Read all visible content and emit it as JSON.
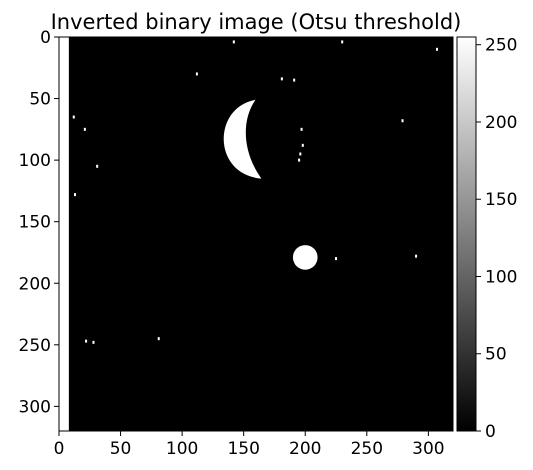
{
  "chart_data": [
    {
      "type": "heatmap",
      "title": "Inverted binary image (Otsu threshold)",
      "xlabel": "",
      "ylabel": "",
      "xlim": [
        0,
        320
      ],
      "ylim": [
        320,
        0
      ],
      "x_ticks": [
        0,
        50,
        100,
        150,
        200,
        250,
        300
      ],
      "y_ticks": [
        0,
        50,
        100,
        150,
        200,
        250,
        300
      ],
      "colormap": "gray",
      "value_range": [
        0,
        255
      ],
      "background_value": 0,
      "foreground_value": 255,
      "regions": [
        {
          "name": "left border strip",
          "shape": "rect",
          "x": [
            0,
            8
          ],
          "y": [
            0,
            320
          ],
          "value": 255
        },
        {
          "name": "crescent blob",
          "shape": "crescent",
          "cx": 150,
          "cy": 83,
          "rx": 16,
          "ry": 32,
          "value": 255
        },
        {
          "name": "round blob",
          "shape": "ellipse",
          "cx": 200,
          "cy": 179,
          "rx": 10,
          "ry": 10,
          "value": 255
        },
        {
          "name": "small fragments near x=197",
          "shape": "points",
          "points": [
            [
              197,
              75
            ],
            [
              198,
              88
            ],
            [
              196,
              95
            ],
            [
              195,
              100
            ]
          ],
          "value": 255
        },
        {
          "name": "speckle noise",
          "shape": "points",
          "points": [
            [
              12,
              65
            ],
            [
              21,
              75
            ],
            [
              31,
              105
            ],
            [
              13,
              128
            ],
            [
              22,
              247
            ],
            [
              28,
              248
            ],
            [
              81,
              245
            ],
            [
              142,
              4
            ],
            [
              181,
              34
            ],
            [
              191,
              35
            ],
            [
              279,
              68
            ],
            [
              307,
              10
            ],
            [
              230,
              4
            ],
            [
              290,
              178
            ],
            [
              225,
              180
            ],
            [
              112,
              30
            ]
          ],
          "value": 255
        }
      ]
    },
    {
      "type": "colorbar",
      "ticks": [
        0,
        50,
        100,
        150,
        200,
        250
      ],
      "range": [
        0,
        255
      ],
      "colormap": "gray"
    }
  ]
}
